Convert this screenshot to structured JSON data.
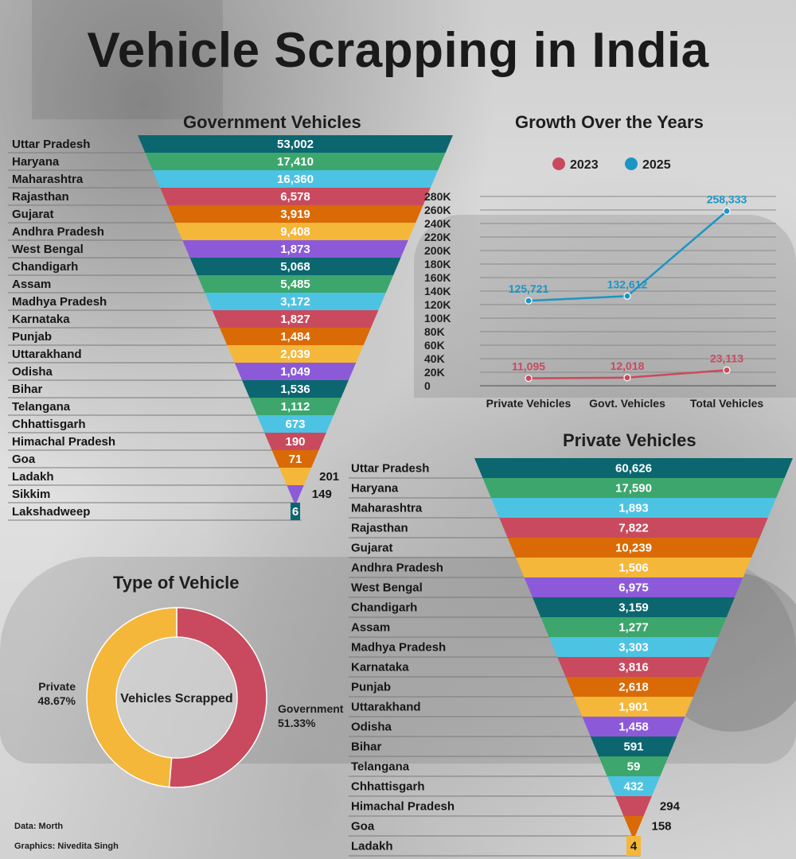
{
  "title": "Vehicle Scrapping in India",
  "credits": {
    "data": "Data: Morth",
    "graphics": "Graphics: Nivedita Singh"
  },
  "colors": {
    "palette": [
      "#0b6670",
      "#3ca66d",
      "#4dc3e3",
      "#c94a5e",
      "#d96a06",
      "#f4b73a",
      "#8c5ad8"
    ],
    "series_2023": "#c94a5e",
    "series_2025": "#1d95c4",
    "private": "#f4b73a",
    "government": "#c94a5e"
  },
  "chart_data": [
    {
      "type": "bar",
      "title": "Government Vehicles",
      "categories": [
        "Uttar Pradesh",
        "Haryana",
        "Maharashtra",
        "Rajasthan",
        "Gujarat",
        "Andhra Pradesh",
        "West Bengal",
        "Chandigarh",
        "Assam",
        "Madhya Pradesh",
        "Karnataka",
        "Punjab",
        "Uttarakhand",
        "Odisha",
        "Bihar",
        "Telangana",
        "Chhattisgarh",
        "Himachal Pradesh",
        "Goa",
        "Ladakh",
        "Sikkim",
        "Lakshadweep"
      ],
      "values": [
        53002,
        17410,
        16360,
        6578,
        3919,
        9408,
        1873,
        5068,
        5485,
        3172,
        1827,
        1484,
        2039,
        1049,
        1536,
        1112,
        673,
        190,
        71,
        201,
        149,
        6
      ],
      "labels": [
        "53,002",
        "17,410",
        "16,360",
        "6,578",
        "3,919",
        "9,408",
        "1,873",
        "5,068",
        "5,485",
        "3,172",
        "1,827",
        "1,484",
        "2,039",
        "1,049",
        "1,536",
        "1,112",
        "673",
        "190",
        "71",
        "201",
        "149",
        "6"
      ]
    },
    {
      "type": "line",
      "title": "Growth Over the Years",
      "categories": [
        "Private Vehicles",
        "Govt. Vehicles",
        "Total Vehicles"
      ],
      "series": [
        {
          "name": "2023",
          "values": [
            11095,
            12018,
            23113
          ],
          "labels": [
            "11,095",
            "12,018",
            "23,113"
          ]
        },
        {
          "name": "2025",
          "values": [
            125721,
            132612,
            258333
          ],
          "labels": [
            "125,721",
            "132,612",
            "258,333"
          ]
        }
      ],
      "yticks": [
        "280K",
        "260K",
        "240K",
        "220K",
        "200K",
        "180K",
        "160K",
        "140K",
        "120K",
        "100K",
        "80K",
        "60K",
        "40K",
        "20K",
        "0"
      ],
      "ylim": [
        0,
        280000
      ],
      "legend": "top",
      "grid": true
    },
    {
      "type": "bar",
      "title": "Private Vehicles",
      "categories": [
        "Uttar Pradesh",
        "Haryana",
        "Maharashtra",
        "Rajasthan",
        "Gujarat",
        "Andhra Pradesh",
        "West Bengal",
        "Chandigarh",
        "Assam",
        "Madhya Pradesh",
        "Karnataka",
        "Punjab",
        "Uttarakhand",
        "Odisha",
        "Bihar",
        "Telangana",
        "Chhattisgarh",
        "Himachal Pradesh",
        "Goa",
        "Ladakh"
      ],
      "values": [
        60626,
        17590,
        1893,
        7822,
        10239,
        1506,
        6975,
        3159,
        1277,
        3303,
        3816,
        2618,
        1901,
        1458,
        591,
        59,
        432,
        294,
        158,
        4
      ],
      "labels": [
        "60,626",
        "17,590",
        "1,893",
        "7,822",
        "10,239",
        "1,506",
        "6,975",
        "3,159",
        "1,277",
        "3,303",
        "3,816",
        "2,618",
        "1,901",
        "1,458",
        "591",
        "59",
        "432",
        "294",
        "158",
        "4"
      ]
    },
    {
      "type": "pie",
      "title": "Type of Vehicle",
      "center_label": "Vehicles Scrapped",
      "categories": [
        "Government",
        "Private"
      ],
      "values": [
        51.33,
        48.67
      ],
      "labels": [
        "51.33%",
        "48.67%"
      ]
    }
  ]
}
